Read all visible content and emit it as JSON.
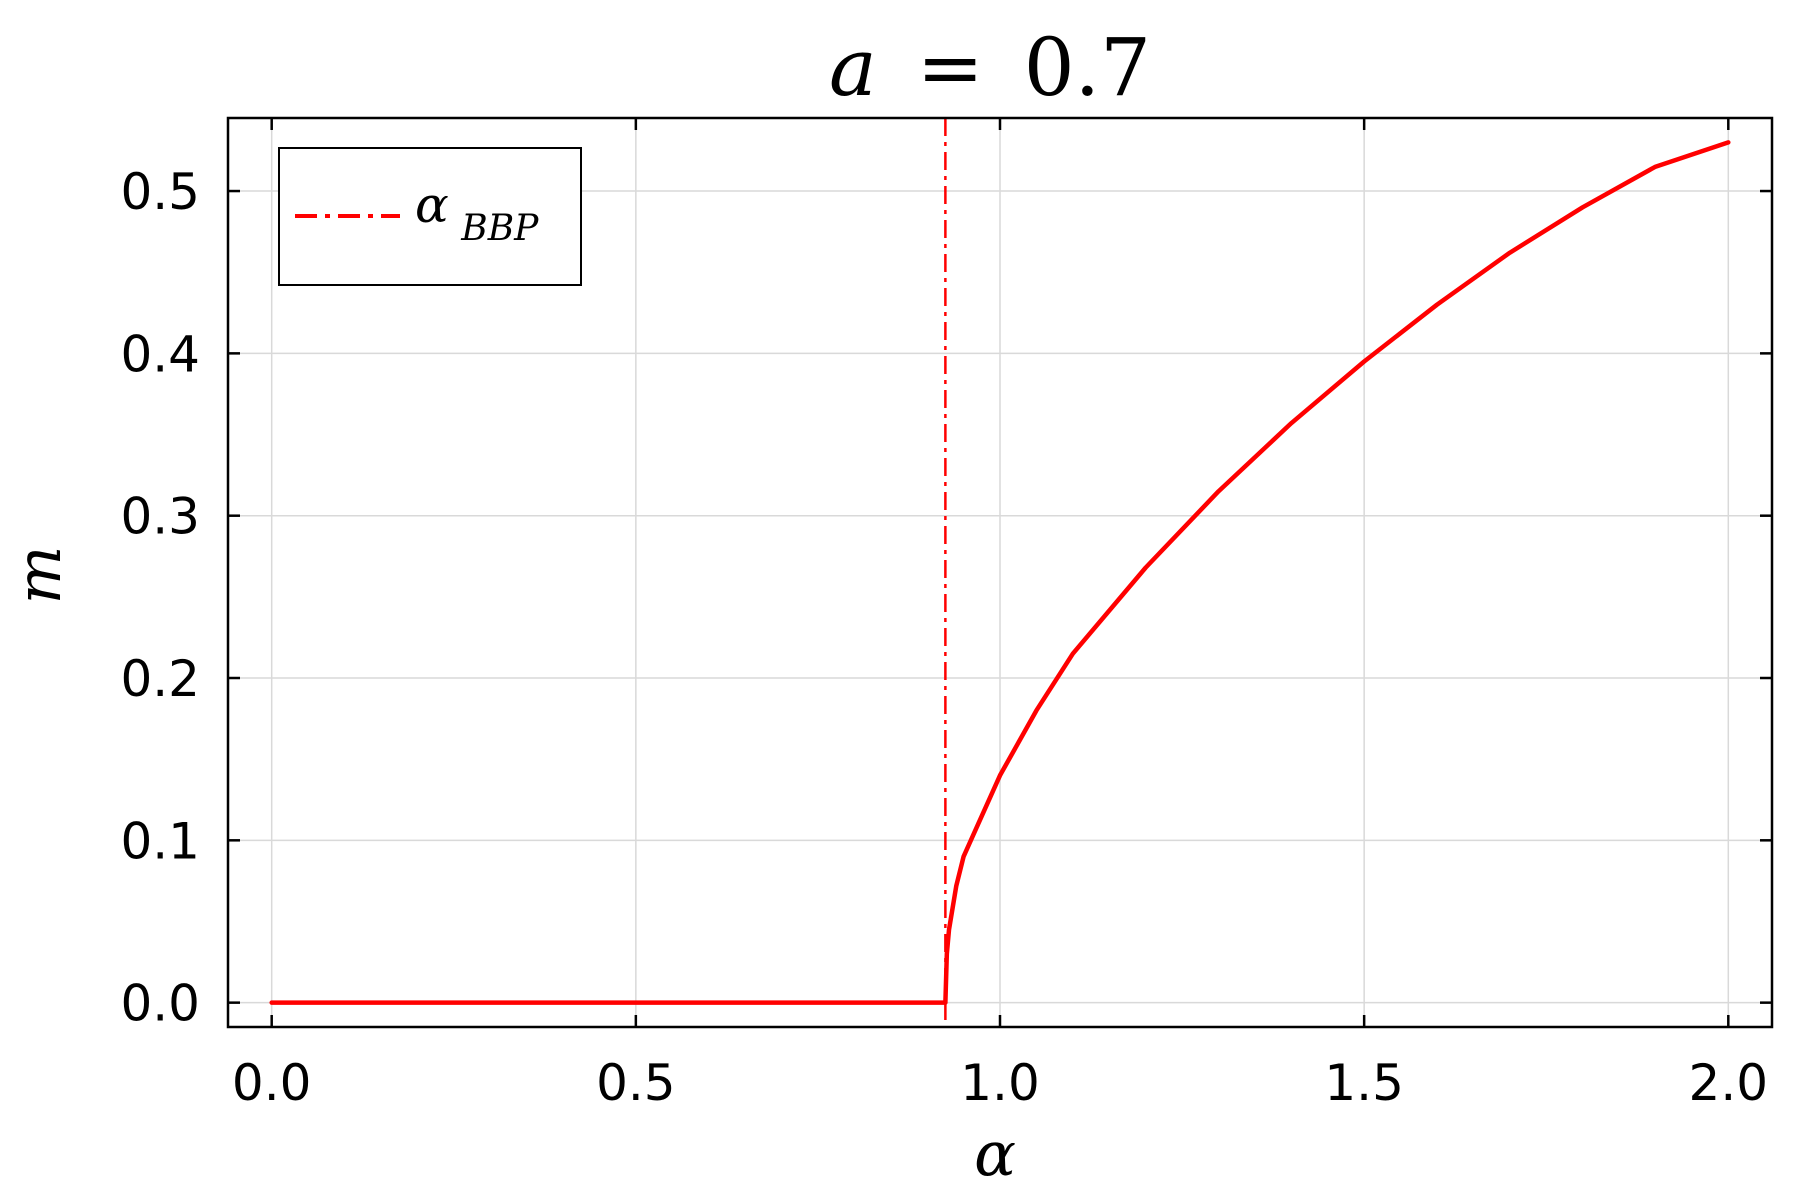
{
  "chart_data": {
    "type": "line",
    "title": {
      "var": "a",
      "op": "=",
      "value": "0.7"
    },
    "xlabel": "α",
    "ylabel": "m",
    "xlim": [
      -0.06,
      2.06
    ],
    "ylim": [
      -0.015,
      0.545
    ],
    "xticks": [
      "0.0",
      "0.5",
      "1.0",
      "1.5",
      "2.0"
    ],
    "yticks": [
      "0.0",
      "0.1",
      "0.2",
      "0.3",
      "0.4",
      "0.5"
    ],
    "xtick_values": [
      0.0,
      0.5,
      1.0,
      1.5,
      2.0
    ],
    "ytick_values": [
      0.0,
      0.1,
      0.2,
      0.3,
      0.4,
      0.5
    ],
    "grid": true,
    "legend": {
      "position": "top-left",
      "base": "α",
      "subscript": "BBP"
    },
    "series": [
      {
        "color": "#ff0000",
        "style": "solid",
        "x": [
          0.0,
          0.925,
          0.927,
          0.93,
          0.94,
          0.95,
          0.97,
          1.0,
          1.05,
          1.1,
          1.2,
          1.3,
          1.4,
          1.5,
          1.6,
          1.7,
          1.8,
          1.9,
          2.0
        ],
        "y": [
          0.0,
          0.0,
          0.03,
          0.045,
          0.072,
          0.09,
          0.11,
          0.14,
          0.18,
          0.215,
          0.268,
          0.315,
          0.357,
          0.395,
          0.43,
          0.462,
          0.49,
          0.515,
          0.53
        ]
      }
    ],
    "vlines": [
      {
        "x": 0.925,
        "color": "#ff0000",
        "style": "dashdot",
        "legend": "α_BBP"
      }
    ]
  }
}
